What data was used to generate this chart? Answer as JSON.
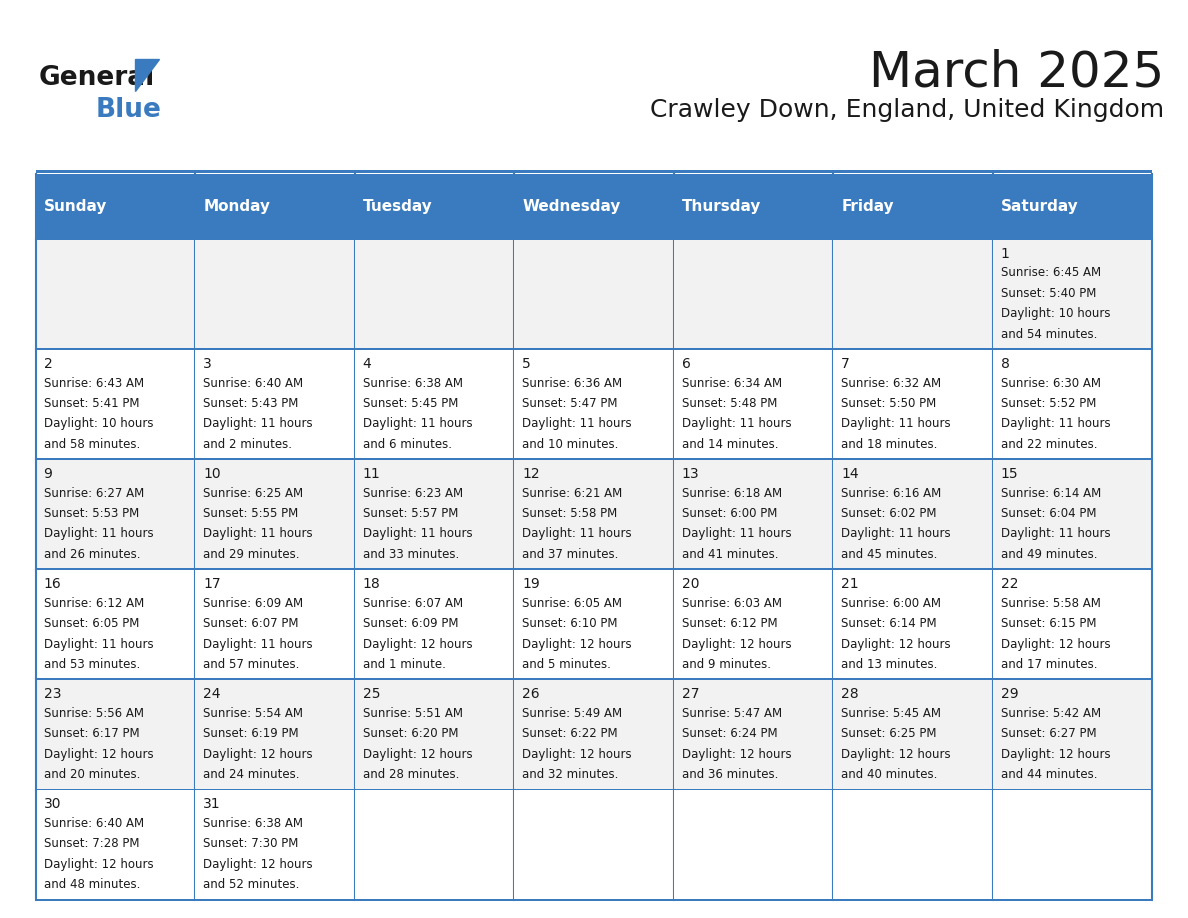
{
  "title": "March 2025",
  "subtitle": "Crawley Down, England, United Kingdom",
  "header_bg": "#3a7bbf",
  "header_text_color": "#ffffff",
  "header_font_size": 11,
  "day_names": [
    "Sunday",
    "Monday",
    "Tuesday",
    "Wednesday",
    "Thursday",
    "Friday",
    "Saturday"
  ],
  "title_font_size": 36,
  "subtitle_font_size": 18,
  "cell_font_size": 8.5,
  "day_num_font_size": 10,
  "odd_row_bg": "#f2f2f2",
  "even_row_bg": "#ffffff",
  "grid_color": "#3a7bbf",
  "logo_general_color": "#1a1a1a",
  "logo_blue_color": "#3a7bbf",
  "calendar_data": [
    [
      {
        "day": null,
        "lines": []
      },
      {
        "day": null,
        "lines": []
      },
      {
        "day": null,
        "lines": []
      },
      {
        "day": null,
        "lines": []
      },
      {
        "day": null,
        "lines": []
      },
      {
        "day": null,
        "lines": []
      },
      {
        "day": 1,
        "lines": [
          "Sunrise: 6:45 AM",
          "Sunset: 5:40 PM",
          "Daylight: 10 hours",
          "and 54 minutes."
        ]
      }
    ],
    [
      {
        "day": 2,
        "lines": [
          "Sunrise: 6:43 AM",
          "Sunset: 5:41 PM",
          "Daylight: 10 hours",
          "and 58 minutes."
        ]
      },
      {
        "day": 3,
        "lines": [
          "Sunrise: 6:40 AM",
          "Sunset: 5:43 PM",
          "Daylight: 11 hours",
          "and 2 minutes."
        ]
      },
      {
        "day": 4,
        "lines": [
          "Sunrise: 6:38 AM",
          "Sunset: 5:45 PM",
          "Daylight: 11 hours",
          "and 6 minutes."
        ]
      },
      {
        "day": 5,
        "lines": [
          "Sunrise: 6:36 AM",
          "Sunset: 5:47 PM",
          "Daylight: 11 hours",
          "and 10 minutes."
        ]
      },
      {
        "day": 6,
        "lines": [
          "Sunrise: 6:34 AM",
          "Sunset: 5:48 PM",
          "Daylight: 11 hours",
          "and 14 minutes."
        ]
      },
      {
        "day": 7,
        "lines": [
          "Sunrise: 6:32 AM",
          "Sunset: 5:50 PM",
          "Daylight: 11 hours",
          "and 18 minutes."
        ]
      },
      {
        "day": 8,
        "lines": [
          "Sunrise: 6:30 AM",
          "Sunset: 5:52 PM",
          "Daylight: 11 hours",
          "and 22 minutes."
        ]
      }
    ],
    [
      {
        "day": 9,
        "lines": [
          "Sunrise: 6:27 AM",
          "Sunset: 5:53 PM",
          "Daylight: 11 hours",
          "and 26 minutes."
        ]
      },
      {
        "day": 10,
        "lines": [
          "Sunrise: 6:25 AM",
          "Sunset: 5:55 PM",
          "Daylight: 11 hours",
          "and 29 minutes."
        ]
      },
      {
        "day": 11,
        "lines": [
          "Sunrise: 6:23 AM",
          "Sunset: 5:57 PM",
          "Daylight: 11 hours",
          "and 33 minutes."
        ]
      },
      {
        "day": 12,
        "lines": [
          "Sunrise: 6:21 AM",
          "Sunset: 5:58 PM",
          "Daylight: 11 hours",
          "and 37 minutes."
        ]
      },
      {
        "day": 13,
        "lines": [
          "Sunrise: 6:18 AM",
          "Sunset: 6:00 PM",
          "Daylight: 11 hours",
          "and 41 minutes."
        ]
      },
      {
        "day": 14,
        "lines": [
          "Sunrise: 6:16 AM",
          "Sunset: 6:02 PM",
          "Daylight: 11 hours",
          "and 45 minutes."
        ]
      },
      {
        "day": 15,
        "lines": [
          "Sunrise: 6:14 AM",
          "Sunset: 6:04 PM",
          "Daylight: 11 hours",
          "and 49 minutes."
        ]
      }
    ],
    [
      {
        "day": 16,
        "lines": [
          "Sunrise: 6:12 AM",
          "Sunset: 6:05 PM",
          "Daylight: 11 hours",
          "and 53 minutes."
        ]
      },
      {
        "day": 17,
        "lines": [
          "Sunrise: 6:09 AM",
          "Sunset: 6:07 PM",
          "Daylight: 11 hours",
          "and 57 minutes."
        ]
      },
      {
        "day": 18,
        "lines": [
          "Sunrise: 6:07 AM",
          "Sunset: 6:09 PM",
          "Daylight: 12 hours",
          "and 1 minute."
        ]
      },
      {
        "day": 19,
        "lines": [
          "Sunrise: 6:05 AM",
          "Sunset: 6:10 PM",
          "Daylight: 12 hours",
          "and 5 minutes."
        ]
      },
      {
        "day": 20,
        "lines": [
          "Sunrise: 6:03 AM",
          "Sunset: 6:12 PM",
          "Daylight: 12 hours",
          "and 9 minutes."
        ]
      },
      {
        "day": 21,
        "lines": [
          "Sunrise: 6:00 AM",
          "Sunset: 6:14 PM",
          "Daylight: 12 hours",
          "and 13 minutes."
        ]
      },
      {
        "day": 22,
        "lines": [
          "Sunrise: 5:58 AM",
          "Sunset: 6:15 PM",
          "Daylight: 12 hours",
          "and 17 minutes."
        ]
      }
    ],
    [
      {
        "day": 23,
        "lines": [
          "Sunrise: 5:56 AM",
          "Sunset: 6:17 PM",
          "Daylight: 12 hours",
          "and 20 minutes."
        ]
      },
      {
        "day": 24,
        "lines": [
          "Sunrise: 5:54 AM",
          "Sunset: 6:19 PM",
          "Daylight: 12 hours",
          "and 24 minutes."
        ]
      },
      {
        "day": 25,
        "lines": [
          "Sunrise: 5:51 AM",
          "Sunset: 6:20 PM",
          "Daylight: 12 hours",
          "and 28 minutes."
        ]
      },
      {
        "day": 26,
        "lines": [
          "Sunrise: 5:49 AM",
          "Sunset: 6:22 PM",
          "Daylight: 12 hours",
          "and 32 minutes."
        ]
      },
      {
        "day": 27,
        "lines": [
          "Sunrise: 5:47 AM",
          "Sunset: 6:24 PM",
          "Daylight: 12 hours",
          "and 36 minutes."
        ]
      },
      {
        "day": 28,
        "lines": [
          "Sunrise: 5:45 AM",
          "Sunset: 6:25 PM",
          "Daylight: 12 hours",
          "and 40 minutes."
        ]
      },
      {
        "day": 29,
        "lines": [
          "Sunrise: 5:42 AM",
          "Sunset: 6:27 PM",
          "Daylight: 12 hours",
          "and 44 minutes."
        ]
      }
    ],
    [
      {
        "day": 30,
        "lines": [
          "Sunrise: 6:40 AM",
          "Sunset: 7:28 PM",
          "Daylight: 12 hours",
          "and 48 minutes."
        ]
      },
      {
        "day": 31,
        "lines": [
          "Sunrise: 6:38 AM",
          "Sunset: 7:30 PM",
          "Daylight: 12 hours",
          "and 52 minutes."
        ]
      },
      {
        "day": null,
        "lines": []
      },
      {
        "day": null,
        "lines": []
      },
      {
        "day": null,
        "lines": []
      },
      {
        "day": null,
        "lines": []
      },
      {
        "day": null,
        "lines": []
      }
    ]
  ]
}
